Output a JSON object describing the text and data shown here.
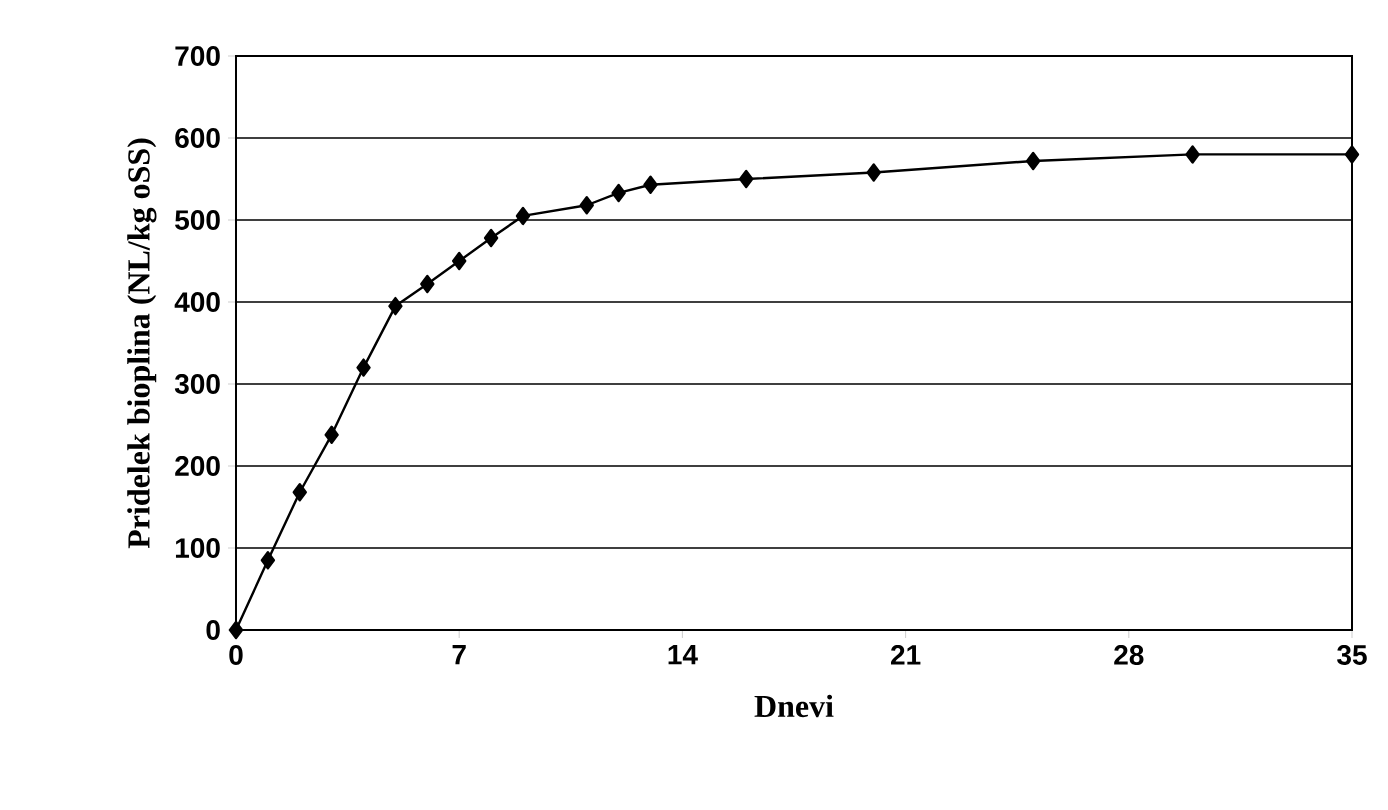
{
  "chart_data": {
    "type": "line",
    "xlabel": "Dnevi",
    "ylabel": "Pridelek bioplina (NL/kg oSS)",
    "x": [
      0,
      1,
      2,
      3,
      4,
      5,
      6,
      7,
      8,
      9,
      11,
      12,
      13,
      16,
      20,
      25,
      30,
      35
    ],
    "values": [
      0,
      85,
      168,
      238,
      320,
      395,
      422,
      450,
      478,
      505,
      518,
      533,
      543,
      550,
      558,
      572,
      580,
      580
    ],
    "color": "#000000",
    "marker": "diamond",
    "line_style": "solid",
    "grid": "y",
    "xlim": [
      0,
      35
    ],
    "xticks": [
      0,
      7,
      14,
      21,
      28,
      35
    ],
    "ylim": [
      0,
      700
    ],
    "yticks": [
      0,
      100,
      200,
      300,
      400,
      500,
      600,
      700
    ]
  }
}
